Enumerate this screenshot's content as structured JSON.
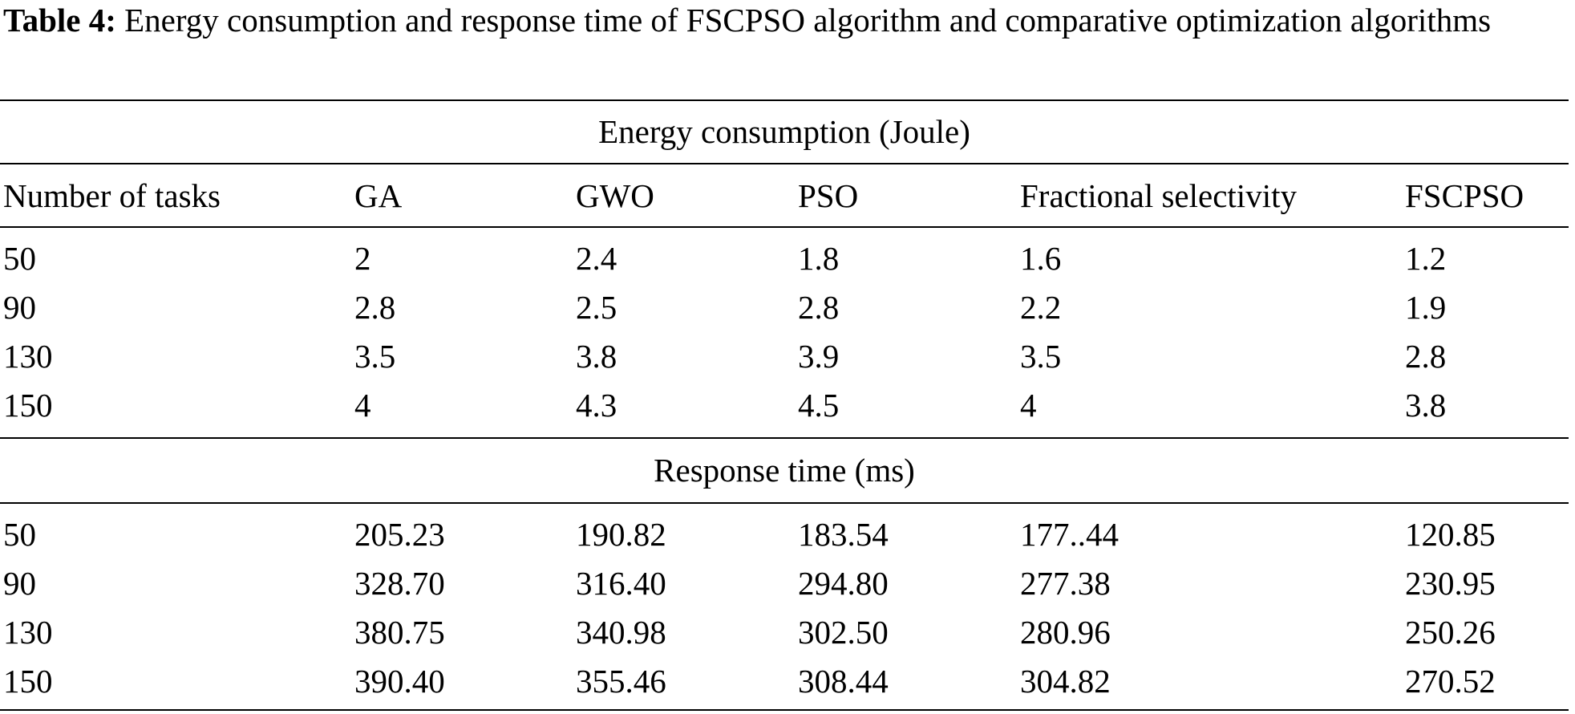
{
  "caption": {
    "label": "Table 4:",
    "text": "Energy consumption and response time of FSCPSO algorithm and comparative optimization algorithms"
  },
  "sections": {
    "energy_title": "Energy consumption (Joule)",
    "response_title": "Response time (ms)"
  },
  "columns": [
    "Number of tasks",
    "GA",
    "GWO",
    "PSO",
    "Fractional selectivity",
    "FSCPSO"
  ],
  "energy_rows": [
    [
      "50",
      "2",
      "2.4",
      "1.8",
      "1.6",
      "1.2"
    ],
    [
      "90",
      "2.8",
      "2.5",
      "2.8",
      "2.2",
      "1.9"
    ],
    [
      "130",
      "3.5",
      "3.8",
      "3.9",
      "3.5",
      "2.8"
    ],
    [
      "150",
      "4",
      "4.3",
      "4.5",
      "4",
      "3.8"
    ]
  ],
  "response_rows": [
    [
      "50",
      "205.23",
      "190.82",
      "183.54",
      "177..44",
      "120.85"
    ],
    [
      "90",
      "328.70",
      "316.40",
      "294.80",
      "277.38",
      "230.95"
    ],
    [
      "130",
      "380.75",
      "340.98",
      "302.50",
      "280.96",
      "250.26"
    ],
    [
      "150",
      "390.40",
      "355.46",
      "308.44",
      "304.82",
      "270.52"
    ]
  ]
}
